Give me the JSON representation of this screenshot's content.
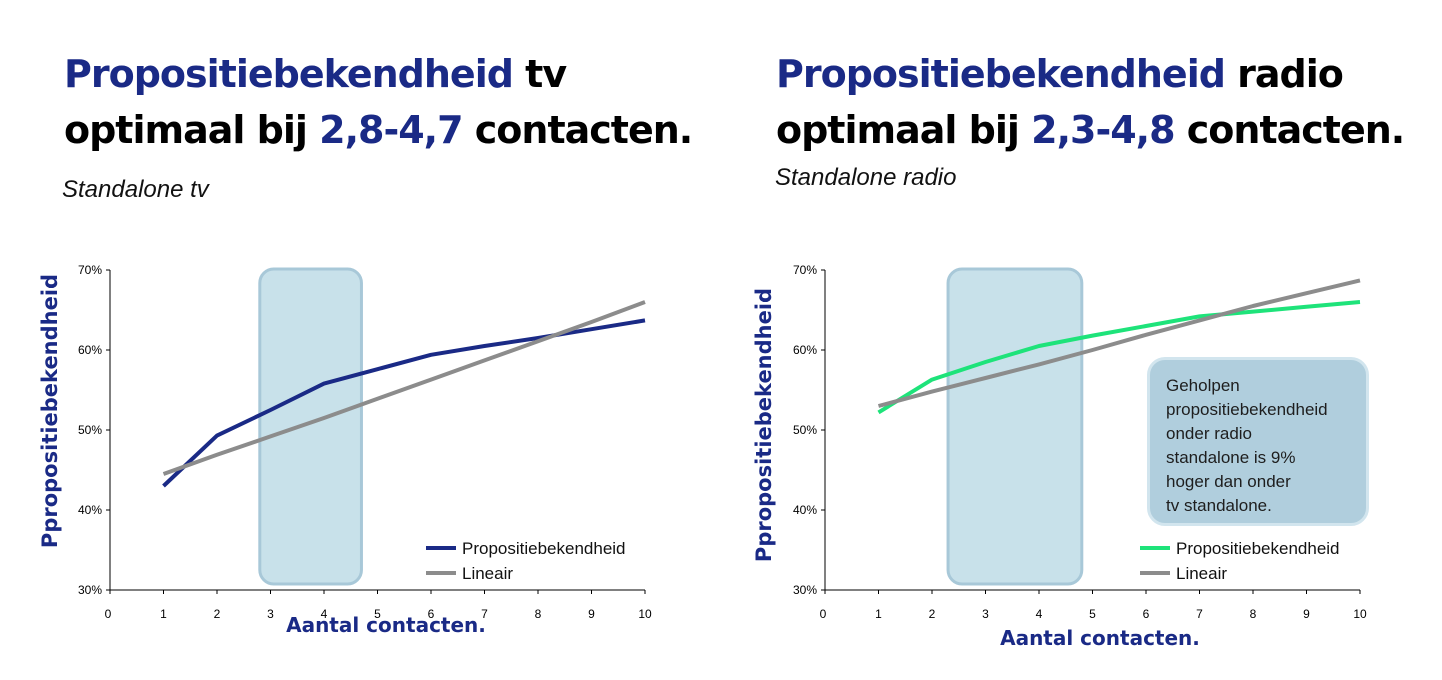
{
  "left": {
    "title_line1_highlight": "Propositiebekendheid",
    "title_line1_rest": " tv",
    "title_line2_pre": "optimaal bij ",
    "title_line2_highlight": "2,8-4,7",
    "title_line2_post": " contacten.",
    "subtitle": "Standalone tv"
  },
  "right": {
    "title_line1_highlight": "Propositiebekendheid",
    "title_line1_rest": " radio",
    "title_line2_pre": "optimaal bij ",
    "title_line2_highlight": "2,3-4,8",
    "title_line2_post": " contacten.",
    "subtitle": "Standalone radio",
    "callout_lines": [
      "Geholpen",
      "propositiebekendheid",
      "onder radio",
      "standalone is 9%",
      "hoger dan onder",
      "tv standalone."
    ]
  },
  "colors": {
    "brand_blue": "#1a2a86",
    "tv_line": "#1a2a86",
    "radio_line": "#1ee37a",
    "lineair_line": "#8c8c8c",
    "highlight_box": "#c8e1ea",
    "highlight_border": "#a8c8d8"
  },
  "chart_data": [
    {
      "type": "line",
      "x": [
        1,
        2,
        3,
        4,
        5,
        6,
        7,
        8,
        9,
        10
      ],
      "x_tick_labels": [
        "0",
        "1",
        "2",
        "3",
        "4",
        "5",
        "6",
        "7",
        "8",
        "9",
        "10"
      ],
      "y_tick_labels": [
        "30%",
        "40%",
        "50%",
        "60%",
        "70%"
      ],
      "ylim": [
        30,
        70
      ],
      "xlim": [
        0,
        10
      ],
      "xlabel": "Aantal contacten.",
      "ylabel": "Ppropositiebekendheid",
      "highlight_range": [
        2.8,
        4.7
      ],
      "legend_position": "bottom-right",
      "series": [
        {
          "name": "Propositiebekendheid",
          "values": [
            43.0,
            49.3,
            52.5,
            55.8,
            57.6,
            59.4,
            60.5,
            61.5,
            62.6,
            63.7
          ]
        },
        {
          "name": "Lineair",
          "values": [
            44.5,
            46.9,
            49.2,
            51.5,
            53.9,
            56.3,
            58.7,
            61.1,
            63.5,
            66.0
          ]
        }
      ]
    },
    {
      "type": "line",
      "x": [
        1,
        2,
        3,
        4,
        5,
        6,
        7,
        8,
        9,
        10
      ],
      "x_tick_labels": [
        "0",
        "1",
        "2",
        "3",
        "4",
        "5",
        "6",
        "7",
        "8",
        "9",
        "10"
      ],
      "y_tick_labels": [
        "30%",
        "40%",
        "50%",
        "60%",
        "70%"
      ],
      "ylim": [
        30,
        70
      ],
      "xlim": [
        0,
        10
      ],
      "xlabel": "Aantal contacten.",
      "ylabel": "Ppropositiebekendheid",
      "highlight_range": [
        2.3,
        4.8
      ],
      "legend_position": "bottom-right",
      "series": [
        {
          "name": "Propositiebekendheid",
          "values": [
            52.2,
            56.3,
            58.5,
            60.5,
            61.8,
            63.0,
            64.2,
            64.8,
            65.4,
            66.0
          ]
        },
        {
          "name": "Lineair",
          "values": [
            53.0,
            54.8,
            56.5,
            58.2,
            60.0,
            61.9,
            63.7,
            65.5,
            67.1,
            68.7
          ]
        }
      ]
    }
  ]
}
